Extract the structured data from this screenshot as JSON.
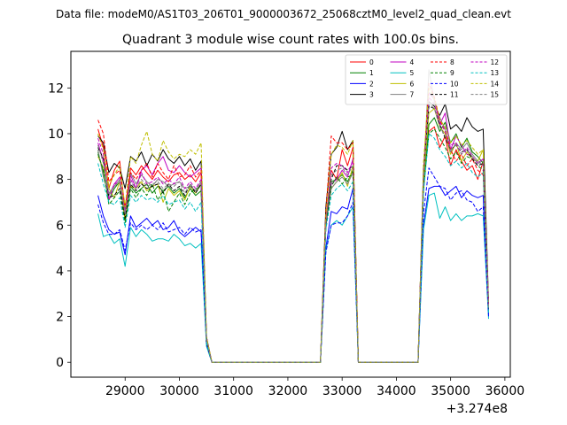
{
  "chart_data": {
    "type": "line",
    "suptitle": "Data file: modeM0/AS1T03_206T01_9000003672_25068cztM0_level2_quad_clean.evt",
    "title": "Quadrant 3 module wise count rates with 100.0s bins.",
    "xlabel": "",
    "ylabel": "",
    "x_offset_label": "+3.274e8",
    "xlim": [
      28000,
      36100
    ],
    "ylim": [
      -0.65,
      13.6
    ],
    "xticks": [
      29000,
      30000,
      31000,
      32000,
      33000,
      34000,
      35000,
      36000
    ],
    "yticks": [
      0,
      2,
      4,
      6,
      8,
      10,
      12
    ],
    "legend_position": "top-right",
    "x": [
      28500,
      28600,
      28700,
      28800,
      28900,
      29000,
      29100,
      29200,
      29300,
      29400,
      29500,
      29600,
      29700,
      29800,
      29900,
      30000,
      30100,
      30200,
      30300,
      30400,
      30500,
      30600,
      30700,
      32600,
      32700,
      32800,
      32900,
      33000,
      33100,
      33200,
      33300,
      33400,
      34400,
      34500,
      34600,
      34700,
      34800,
      34900,
      35000,
      35100,
      35200,
      35300,
      35400,
      35500,
      35600,
      35700
    ],
    "series": [
      {
        "name": "0",
        "color": "#ff0000",
        "dash": "solid",
        "values": [
          10.2,
          9.4,
          7.6,
          8.4,
          8.8,
          6.6,
          8.5,
          8.2,
          8.6,
          8.3,
          8.0,
          8.4,
          8.1,
          7.9,
          8.2,
          8.3,
          8.0,
          8.2,
          7.9,
          8.3,
          1.0,
          0,
          0,
          0,
          6.2,
          8.4,
          8.0,
          9.3,
          8.6,
          9.4,
          0,
          0,
          0,
          7.7,
          10.1,
          10.3,
          9.4,
          9.9,
          8.6,
          9.3,
          8.8,
          8.4,
          8.6,
          8.0,
          8.8,
          2.4
        ]
      },
      {
        "name": "1",
        "color": "#008000",
        "dash": "solid",
        "values": [
          9.2,
          8.3,
          7.1,
          7.6,
          7.9,
          6.2,
          7.7,
          7.4,
          7.6,
          7.8,
          7.4,
          7.7,
          7.5,
          7.7,
          7.4,
          7.6,
          7.2,
          7.6,
          7.3,
          7.5,
          0.9,
          0,
          0,
          0,
          6.0,
          7.9,
          8.0,
          8.2,
          7.9,
          8.4,
          0,
          0,
          0,
          7.7,
          10.4,
          10.7,
          10.1,
          10.5,
          9.6,
          10.0,
          9.4,
          9.8,
          9.2,
          9.0,
          8.7,
          2.3
        ]
      },
      {
        "name": "2",
        "color": "#0000ff",
        "dash": "solid",
        "values": [
          7.3,
          6.4,
          5.8,
          5.6,
          5.7,
          4.7,
          6.4,
          5.9,
          6.1,
          6.3,
          6.0,
          6.2,
          5.8,
          5.9,
          6.2,
          5.7,
          5.5,
          5.7,
          5.9,
          5.7,
          0.8,
          0,
          0,
          0,
          5.0,
          6.6,
          6.5,
          6.8,
          6.7,
          7.6,
          0,
          0,
          0,
          6.0,
          7.6,
          7.7,
          7.7,
          7.3,
          7.5,
          7.7,
          7.2,
          7.5,
          7.3,
          7.2,
          7.3,
          2.1
        ]
      },
      {
        "name": "3",
        "color": "#000000",
        "dash": "solid",
        "values": [
          9.9,
          9.6,
          8.3,
          8.7,
          8.5,
          7.6,
          9.0,
          8.8,
          9.2,
          8.6,
          9.1,
          8.8,
          9.3,
          8.9,
          8.7,
          9.0,
          8.6,
          8.9,
          8.4,
          8.8,
          1.1,
          0,
          0,
          0,
          6.8,
          9.1,
          9.4,
          10.1,
          9.3,
          9.7,
          0,
          0,
          0,
          8.4,
          11.4,
          11.2,
          10.8,
          11.3,
          10.2,
          10.4,
          10.1,
          10.7,
          10.3,
          10.1,
          10.2,
          2.6
        ]
      },
      {
        "name": "4",
        "color": "#c000c0",
        "dash": "solid",
        "values": [
          9.6,
          8.8,
          7.3,
          7.8,
          8.1,
          6.4,
          8.2,
          7.6,
          8.4,
          8.6,
          8.2,
          8.7,
          9.0,
          8.4,
          8.3,
          8.6,
          8.3,
          8.1,
          8.3,
          8.5,
          1.0,
          0,
          0,
          0,
          6.1,
          7.8,
          8.0,
          8.4,
          8.1,
          8.9,
          0,
          0,
          0,
          8.1,
          11.8,
          11.5,
          10.4,
          10.9,
          9.3,
          9.9,
          9.5,
          9.1,
          9.0,
          8.7,
          8.9,
          2.4
        ]
      },
      {
        "name": "5",
        "color": "#00c0c0",
        "dash": "solid",
        "values": [
          6.5,
          5.5,
          5.6,
          5.2,
          5.4,
          4.2,
          5.9,
          5.5,
          5.8,
          5.6,
          5.3,
          5.4,
          5.4,
          5.3,
          5.6,
          5.4,
          5.1,
          5.2,
          5.0,
          5.2,
          0.7,
          0,
          0,
          0,
          4.9,
          6.0,
          6.2,
          6.0,
          6.4,
          6.8,
          0,
          0,
          0,
          5.8,
          7.3,
          7.4,
          6.3,
          6.8,
          6.2,
          6.5,
          6.2,
          6.4,
          6.4,
          6.5,
          6.4,
          1.9
        ]
      },
      {
        "name": "6",
        "color": "#bfbf00",
        "dash": "solid",
        "values": [
          9.0,
          8.5,
          7.6,
          7.2,
          7.9,
          6.3,
          7.7,
          7.6,
          7.9,
          7.5,
          7.7,
          7.8,
          7.0,
          7.6,
          7.3,
          7.5,
          7.1,
          7.7,
          7.4,
          7.8,
          0.9,
          0,
          0,
          0,
          6.2,
          7.6,
          7.9,
          8.3,
          7.7,
          8.6,
          0,
          0,
          0,
          7.9,
          10.9,
          11.1,
          10.3,
          10.0,
          9.1,
          9.6,
          8.8,
          9.2,
          8.9,
          8.8,
          9.3,
          2.3
        ]
      },
      {
        "name": "7",
        "color": "#808080",
        "dash": "solid",
        "values": [
          9.3,
          8.1,
          7.3,
          7.7,
          8.0,
          6.5,
          8.3,
          7.8,
          8.2,
          7.9,
          7.7,
          8.0,
          7.9,
          7.7,
          7.8,
          7.9,
          7.6,
          7.7,
          7.5,
          7.9,
          1.0,
          0,
          0,
          0,
          6.0,
          7.6,
          7.9,
          8.1,
          7.8,
          8.3,
          0,
          0,
          0,
          8.0,
          12.8,
          11.4,
          10.7,
          10.2,
          9.2,
          9.6,
          9.3,
          9.6,
          9.1,
          8.8,
          8.6,
          2.4
        ]
      },
      {
        "name": "8",
        "color": "#ff0000",
        "dash": "dashed",
        "values": [
          10.6,
          10.0,
          7.9,
          8.2,
          8.4,
          6.8,
          8.3,
          8.0,
          8.4,
          8.7,
          8.1,
          8.7,
          8.3,
          8.0,
          8.6,
          8.1,
          8.2,
          8.6,
          8.1,
          8.4,
          1.1,
          0,
          0,
          0,
          6.6,
          9.9,
          9.6,
          9.6,
          9.3,
          9.6,
          0,
          0,
          0,
          8.3,
          12.2,
          11.6,
          10.6,
          10.1,
          9.3,
          8.8,
          9.1,
          8.6,
          8.9,
          8.4,
          8.2,
          2.5
        ]
      },
      {
        "name": "9",
        "color": "#008000",
        "dash": "dashed",
        "values": [
          9.1,
          8.4,
          6.9,
          7.2,
          7.5,
          6.1,
          7.6,
          7.2,
          7.6,
          7.3,
          7.8,
          7.1,
          7.5,
          6.6,
          7.0,
          7.4,
          6.9,
          7.4,
          7.6,
          7.6,
          0.9,
          0,
          0,
          0,
          5.9,
          7.7,
          8.1,
          7.8,
          8.1,
          8.2,
          0,
          0,
          0,
          7.5,
          10.0,
          10.2,
          9.8,
          9.4,
          8.9,
          9.2,
          8.7,
          9.0,
          8.9,
          8.6,
          8.4,
          2.2
        ]
      },
      {
        "name": "10",
        "color": "#0000ff",
        "dash": "dashed",
        "values": [
          6.9,
          6.1,
          5.6,
          5.6,
          5.8,
          4.9,
          6.1,
          5.8,
          6.0,
          5.8,
          6.0,
          5.8,
          6.1,
          5.7,
          5.8,
          5.9,
          5.6,
          5.9,
          5.7,
          5.8,
          0.8,
          0,
          0,
          0,
          4.8,
          6.0,
          6.1,
          6.1,
          6.4,
          7.0,
          0,
          0,
          0,
          6.5,
          8.5,
          8.1,
          7.7,
          7.6,
          7.1,
          7.4,
          7.5,
          7.1,
          7.0,
          6.6,
          6.8,
          2.0
        ]
      },
      {
        "name": "11",
        "color": "#000000",
        "dash": "dashed",
        "values": [
          9.4,
          8.9,
          7.2,
          7.3,
          7.6,
          6.3,
          7.8,
          7.5,
          7.8,
          7.6,
          7.7,
          7.8,
          7.4,
          7.8,
          7.5,
          7.7,
          7.3,
          7.8,
          7.4,
          7.8,
          0.9,
          0,
          0,
          0,
          6.0,
          8.0,
          8.6,
          8.6,
          8.4,
          8.6,
          0,
          0,
          0,
          8.3,
          11.2,
          11.1,
          10.4,
          9.8,
          9.3,
          9.5,
          9.2,
          9.3,
          8.9,
          8.6,
          8.7,
          2.4
        ]
      },
      {
        "name": "12",
        "color": "#c000c0",
        "dash": "dashed",
        "values": [
          9.8,
          9.1,
          7.1,
          7.8,
          7.9,
          6.6,
          8.0,
          7.6,
          8.3,
          7.8,
          7.9,
          8.1,
          7.8,
          8.0,
          7.8,
          8.1,
          7.6,
          7.9,
          7.6,
          8.0,
          1.0,
          0,
          0,
          0,
          6.2,
          8.5,
          8.7,
          8.6,
          8.3,
          8.8,
          0,
          0,
          0,
          8.2,
          11.6,
          11.3,
          10.5,
          10.1,
          9.5,
          9.6,
          9.1,
          9.4,
          9.0,
          8.7,
          8.9,
          2.4
        ]
      },
      {
        "name": "13",
        "color": "#00c0c0",
        "dash": "dashed",
        "values": [
          8.7,
          7.8,
          7.0,
          6.9,
          7.2,
          5.9,
          7.3,
          7.0,
          7.3,
          7.1,
          7.2,
          7.0,
          7.3,
          6.9,
          7.0,
          7.1,
          6.7,
          7.0,
          6.6,
          7.0,
          0.9,
          0,
          0,
          0,
          5.8,
          7.3,
          7.6,
          7.8,
          7.5,
          7.9,
          0,
          0,
          0,
          7.4,
          10.0,
          9.8,
          9.3,
          9.0,
          8.6,
          8.8,
          8.5,
          8.7,
          8.3,
          8.1,
          8.3,
          2.2
        ]
      },
      {
        "name": "14",
        "color": "#bfbf00",
        "dash": "dashed",
        "values": [
          10.0,
          9.3,
          7.7,
          8.2,
          8.6,
          6.8,
          9.0,
          8.7,
          9.5,
          10.1,
          9.1,
          8.8,
          9.7,
          9.2,
          8.9,
          9.1,
          9.0,
          9.3,
          9.1,
          9.6,
          1.1,
          0,
          0,
          0,
          6.4,
          9.1,
          9.5,
          9.4,
          9.1,
          9.7,
          0,
          0,
          0,
          8.7,
          12.0,
          11.5,
          10.6,
          10.3,
          9.6,
          9.9,
          9.5,
          9.7,
          9.4,
          9.1,
          9.3,
          2.5
        ]
      },
      {
        "name": "15",
        "color": "#808080",
        "dash": "dashed",
        "values": [
          9.5,
          8.7,
          7.4,
          7.7,
          7.9,
          6.5,
          7.9,
          7.6,
          8.0,
          7.7,
          7.8,
          7.9,
          7.6,
          7.8,
          7.7,
          7.9,
          7.4,
          7.8,
          7.5,
          7.9,
          1.0,
          0,
          0,
          0,
          6.1,
          8.2,
          8.4,
          8.5,
          8.2,
          8.6,
          0,
          0,
          0,
          8.1,
          11.3,
          11.1,
          10.3,
          9.9,
          9.3,
          9.5,
          9.1,
          9.3,
          9.0,
          8.7,
          8.8,
          2.4
        ]
      }
    ]
  }
}
